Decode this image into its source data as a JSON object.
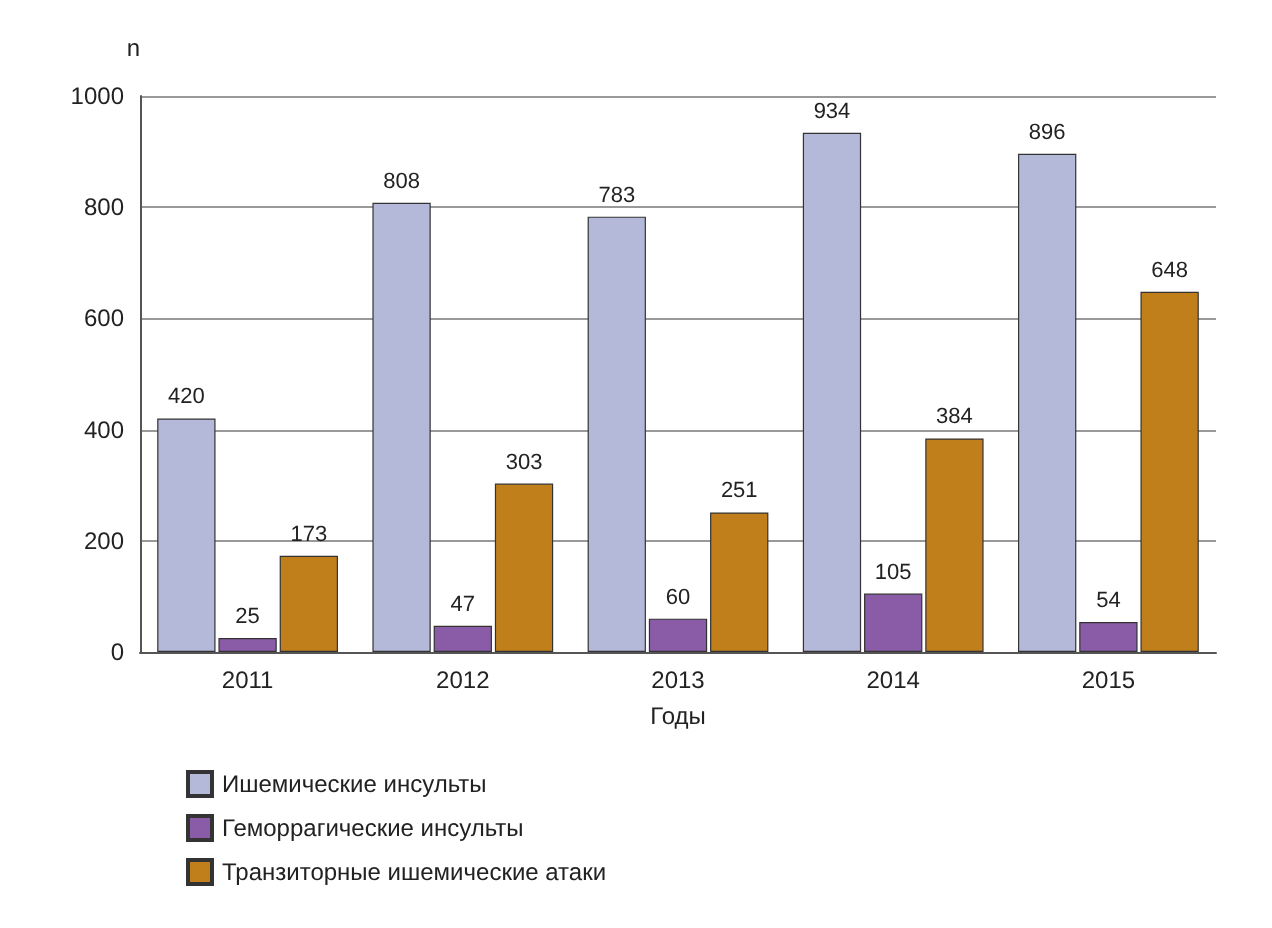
{
  "chart_data": {
    "type": "bar",
    "ylabel": "n",
    "xlabel": "Годы",
    "categories": [
      "2011",
      "2012",
      "2013",
      "2014",
      "2015"
    ],
    "series": [
      {
        "name": "Ишемические инсульты",
        "color": "#b4b9d9",
        "values": [
          420,
          808,
          783,
          934,
          896
        ]
      },
      {
        "name": "Геморрагические инсульты",
        "color": "#8a5ca8",
        "values": [
          25,
          47,
          60,
          105,
          54
        ]
      },
      {
        "name": "Транзиторные ишемические атаки",
        "color": "#c07f1a",
        "values": [
          173,
          303,
          251,
          384,
          648
        ]
      }
    ],
    "ylim": [
      0,
      1000
    ],
    "yticks": [
      0,
      200,
      400,
      600,
      800,
      1000
    ],
    "grid": "y",
    "legend": "bottom left",
    "data_labels": true
  }
}
